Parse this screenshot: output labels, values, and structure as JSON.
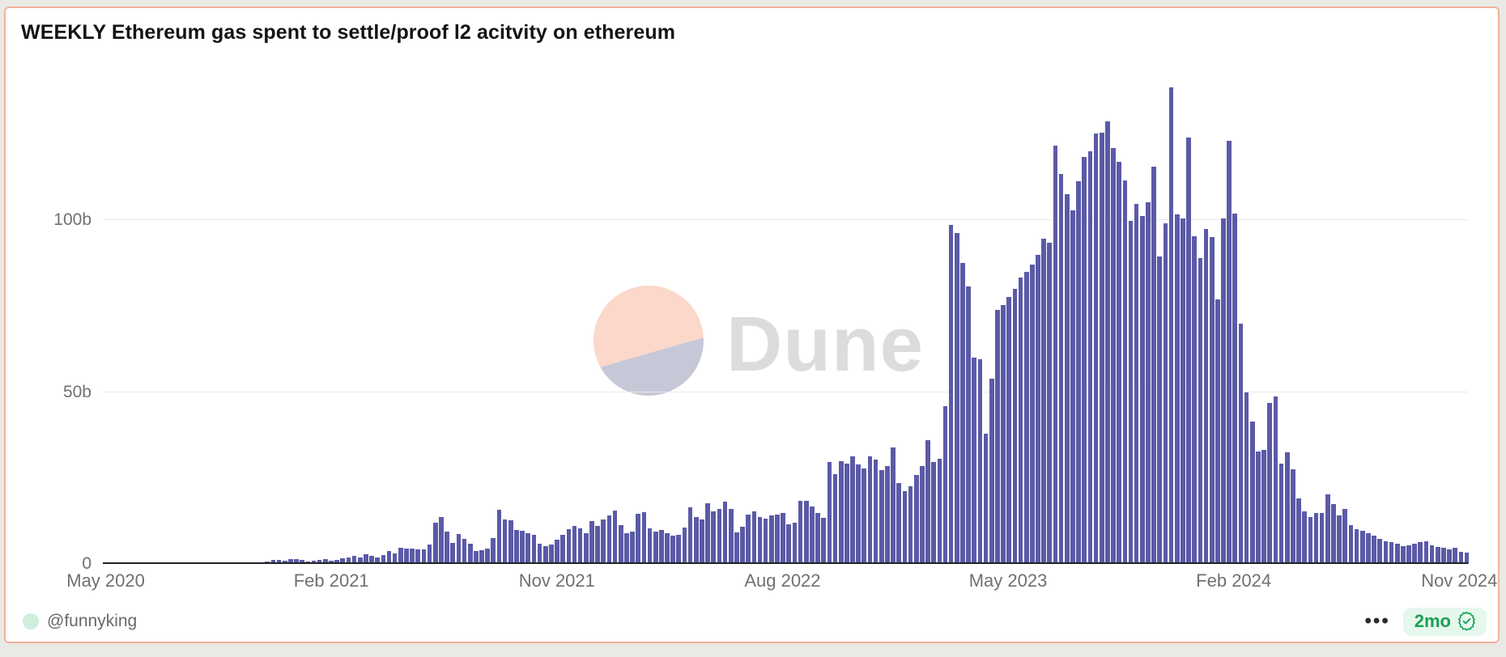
{
  "page": {
    "background": "#e9e9e6"
  },
  "card": {
    "background": "#ffffff",
    "border_color": "#f2b09b"
  },
  "header": {
    "title": "WEEKLY Ethereum gas spent to settle/proof l2 acitvity on ethereum"
  },
  "watermark": {
    "brand": "Dune",
    "circle_top_color": "#fbd8ca",
    "circle_bottom_color": "#c6c8d8",
    "text_color": "#dcdcdc"
  },
  "footer": {
    "author": "@funnyking",
    "menu_dots": "•••",
    "age_badge": "2mo",
    "badge_color": "#1aa053",
    "badge_bg": "#e6f7ed",
    "avatar_color": "#cfeedd",
    "verified_icon": "rosette-check-icon"
  },
  "chart_data": {
    "type": "bar",
    "title": "WEEKLY Ethereum gas spent to settle/proof l2 acitvity on ethereum",
    "cadence": "weekly",
    "x_range": [
      "May 2020",
      "Nov 2024"
    ],
    "x_tick_labels": [
      "May 2020",
      "Feb 2021",
      "Nov 2021",
      "Aug 2022",
      "May 2023",
      "Feb 2024",
      "Nov 2024"
    ],
    "x_tick_indices": [
      0,
      39,
      78,
      117,
      156,
      195,
      234
    ],
    "y_ticks": [
      {
        "label": "0",
        "value": 0
      },
      {
        "label": "50b",
        "value": 50
      },
      {
        "label": "100b",
        "value": 100
      }
    ],
    "ylim": [
      0,
      141
    ],
    "y_unit": "gas (billions)",
    "bar_color": "#5b5aa7",
    "grid": "horizontal",
    "legend": "none",
    "values": [
      0.05,
      0.08,
      0.1,
      0.1,
      0.15,
      0.15,
      0.2,
      0.25,
      0.3,
      0.45,
      0.5,
      0.45,
      0.35,
      0.3,
      0.25,
      0.2,
      0.25,
      0.3,
      0.4,
      0.35,
      0.3,
      0.25,
      0.2,
      0.2,
      0.25,
      0.3,
      0.35,
      0.5,
      0.8,
      1.1,
      1.2,
      0.9,
      1.3,
      1.5,
      1.2,
      0.8,
      0.9,
      1.1,
      1.3,
      1.0,
      1.2,
      1.6,
      2.0,
      2.4,
      1.8,
      2.8,
      2.4,
      1.9,
      2.6,
      3.8,
      3.1,
      4.7,
      4.5,
      4.4,
      4.3,
      4.2,
      5.6,
      12.0,
      13.6,
      9.4,
      6.1,
      8.7,
      7.3,
      5.9,
      3.8,
      4.0,
      4.5,
      7.5,
      15.7,
      12.9,
      12.7,
      10.0,
      9.6,
      8.9,
      8.4,
      6.0,
      5.2,
      5.6,
      7.0,
      8.5,
      10.1,
      11.0,
      10.3,
      8.9,
      12.4,
      11.0,
      12.9,
      14.1,
      15.5,
      11.3,
      8.9,
      9.5,
      14.5,
      15.0,
      10.4,
      9.5,
      10.0,
      9.0,
      8.2,
      8.5,
      10.5,
      16.4,
      13.6,
      12.9,
      17.6,
      15.3,
      16.0,
      18.1,
      16.0,
      9.2,
      10.8,
      14.3,
      15.3,
      13.6,
      13.1,
      14.1,
      14.3,
      14.8,
      11.5,
      12.0,
      18.3,
      18.3,
      16.7,
      14.8,
      13.4,
      29.6,
      26.1,
      30.0,
      29.1,
      31.2,
      28.9,
      27.7,
      31.2,
      30.3,
      27.2,
      28.4,
      34.0,
      23.5,
      21.1,
      22.5,
      25.8,
      28.4,
      35.9,
      29.6,
      30.7,
      45.8,
      98.6,
      96.2,
      87.6,
      80.8,
      60.1,
      59.6,
      37.8,
      54.0,
      73.9,
      75.4,
      77.7,
      80.0,
      83.3,
      85.0,
      87.0,
      90.0,
      94.6,
      93.4,
      121.6,
      113.4,
      107.5,
      102.8,
      111.3,
      118.3,
      120.0,
      125.1,
      125.4,
      128.6,
      120.9,
      116.9,
      111.5,
      99.8,
      104.7,
      101.2,
      105.2,
      115.5,
      89.4,
      99.1,
      138.5,
      101.6,
      100.5,
      124.0,
      95.3,
      89.0,
      97.4,
      95.0,
      77.0,
      100.5,
      123.0,
      102.0,
      70.0,
      50.0,
      41.3,
      32.6,
      33.1,
      46.9,
      48.8,
      29.1,
      32.4,
      27.5,
      19.0,
      15.3,
      13.6,
      14.8,
      14.8,
      20.2,
      17.4,
      14.1,
      16.0,
      11.3,
      10.1,
      9.6,
      8.9,
      8.2,
      7.3,
      6.6,
      6.3,
      5.9,
      5.2,
      5.4,
      5.9,
      6.3,
      6.6,
      5.4,
      4.9,
      4.7,
      4.2,
      4.7,
      3.5,
      3.2
    ]
  }
}
